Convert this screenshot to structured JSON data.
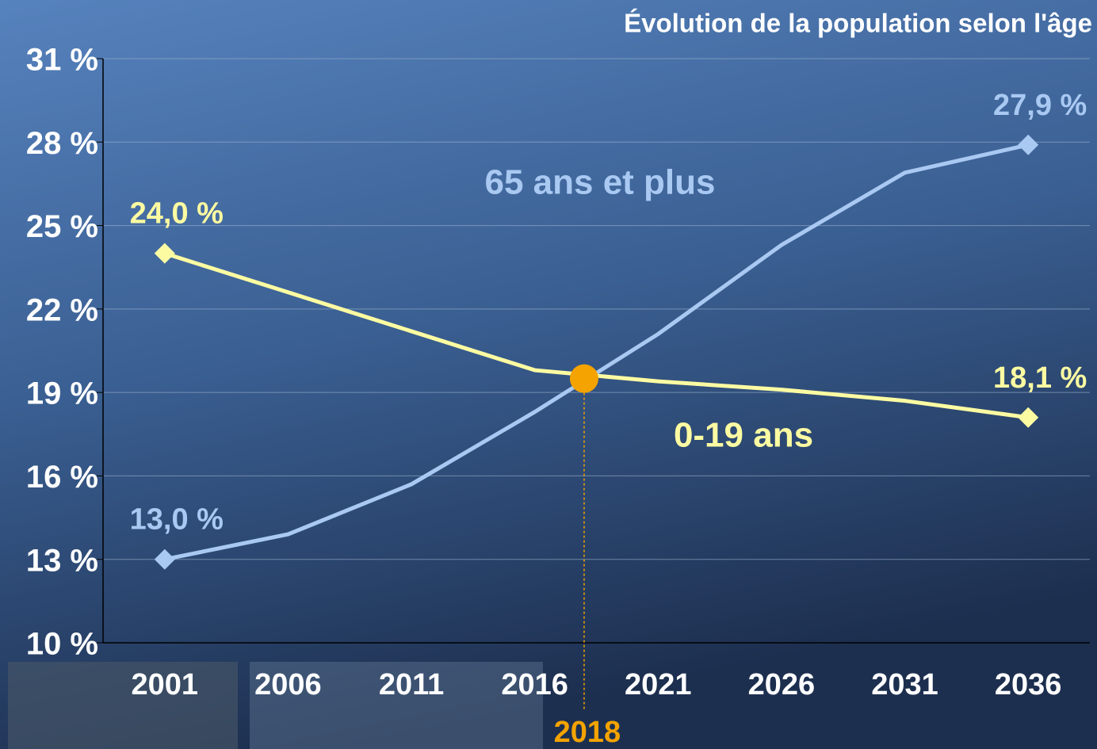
{
  "chart_data": {
    "type": "line",
    "title": "Évolution de la population selon l'âge",
    "x": [
      2001,
      2006,
      2011,
      2016,
      2021,
      2026,
      2031,
      2036
    ],
    "xlim": [
      1998.5,
      2038.5
    ],
    "xticks": [
      2001,
      2006,
      2011,
      2016,
      2021,
      2026,
      2031,
      2036
    ],
    "ylim": [
      10,
      31
    ],
    "yticks": [
      {
        "value": 10,
        "label": "10 %"
      },
      {
        "value": 13,
        "label": "13 %"
      },
      {
        "value": 16,
        "label": "16 %"
      },
      {
        "value": 19,
        "label": "19 %"
      },
      {
        "value": 22,
        "label": "22 %"
      },
      {
        "value": 25,
        "label": "25 %"
      },
      {
        "value": 28,
        "label": "28 %"
      },
      {
        "value": 31,
        "label": "31 %"
      }
    ],
    "grid": true,
    "series": [
      {
        "name": "65 ans et plus",
        "color": "#a9c9f2",
        "values": [
          13.0,
          13.9,
          15.7,
          18.3,
          21.1,
          24.3,
          26.9,
          27.9
        ],
        "value_labels": [
          "13,0 %",
          null,
          null,
          null,
          null,
          null,
          null,
          "27,9 %"
        ]
      },
      {
        "name": "0-19 ans",
        "color": "#fdfba2",
        "values": [
          24.0,
          22.6,
          21.2,
          19.8,
          19.4,
          19.1,
          18.7,
          18.1
        ],
        "value_labels": [
          "24,0 %",
          null,
          null,
          null,
          null,
          null,
          null,
          "18,1 %"
        ]
      }
    ],
    "highlight": {
      "x": 2018,
      "y": 19.5,
      "color": "#f4a300"
    }
  }
}
